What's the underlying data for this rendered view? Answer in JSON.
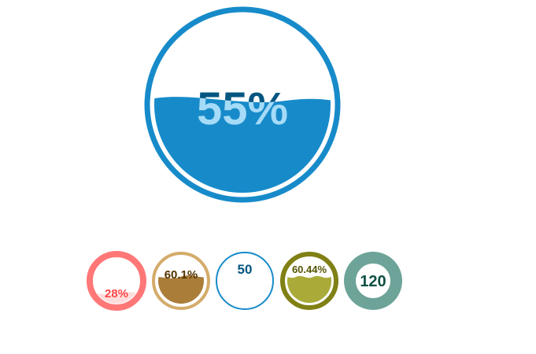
{
  "gauges": [
    {
      "id": "main",
      "label": "55%",
      "value": 55,
      "max": 100,
      "ring_color": "#178BCA",
      "fill_color": "#178BCA",
      "text_color": "#045681",
      "text_in_wave_color": "#A4DBF8",
      "inner_bg": "#ffffff"
    },
    {
      "id": "g1",
      "label": "28%",
      "value": 28,
      "max": 100,
      "ring_color": "#FF7777",
      "fill_color": "#FFDDDD",
      "text_color": "#FF4444",
      "text_in_wave_color": "#FF7777",
      "inner_bg": "#ffffff"
    },
    {
      "id": "g2",
      "label": "60.1%",
      "value": 60.1,
      "max": 100,
      "ring_color": "#D4AB6A",
      "fill_color": "#AA7D39",
      "text_color": "#553300",
      "text_in_wave_color": "#805615",
      "inner_bg": "#ffffff"
    },
    {
      "id": "g3",
      "label": "50",
      "value": 50,
      "max": 100,
      "ring_color": "#178BCA",
      "fill_color": "#178BCA",
      "text_color": "#045681",
      "text_in_wave_color": "#A4DBF8",
      "inner_bg": "#ffffff",
      "note": "fill not visible"
    },
    {
      "id": "g4",
      "label": "60.44%",
      "value": 60.44,
      "max": 100,
      "ring_color": "#808015",
      "fill_color": "#AAAA39",
      "text_color": "#555500",
      "text_in_wave_color": "#FFFFAA",
      "inner_bg": "#ffffff"
    },
    {
      "id": "g5",
      "label": "120",
      "value": 100,
      "max": 100,
      "ring_color": "#6DA398",
      "fill_color": "#6DA398",
      "text_color": "#0E5144",
      "text_in_wave_color": "#6DA398",
      "inner_bg": "#ffffff"
    }
  ]
}
